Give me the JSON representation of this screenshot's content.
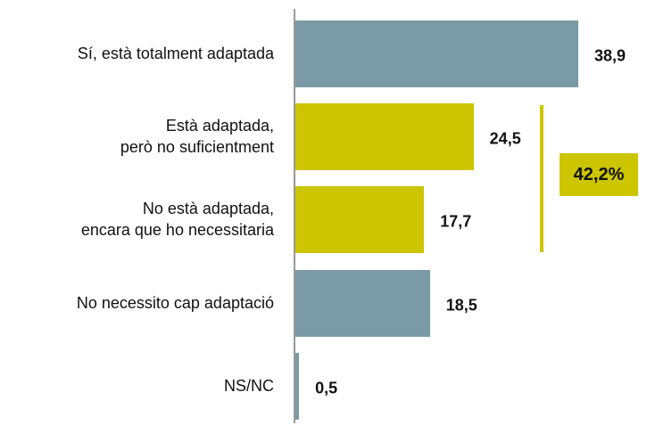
{
  "chart_data": {
    "type": "bar",
    "orientation": "horizontal",
    "categories": [
      "Sí, està totalment adaptada",
      "Està adaptada,\nperò no suficientment",
      "No està adaptada,\nencara que ho necessitaria",
      "No necessito cap adaptació",
      "NS/NC"
    ],
    "values": [
      38.9,
      24.5,
      17.7,
      18.5,
      0.5
    ],
    "value_labels": [
      "38,9",
      "24,5",
      "17,7",
      "18,5",
      "0,5"
    ],
    "colors": [
      "#7a9ba5",
      "#cdc500",
      "#cdc500",
      "#7a9ba5",
      "#7a9ba5"
    ],
    "annotation": "42,2%"
  }
}
